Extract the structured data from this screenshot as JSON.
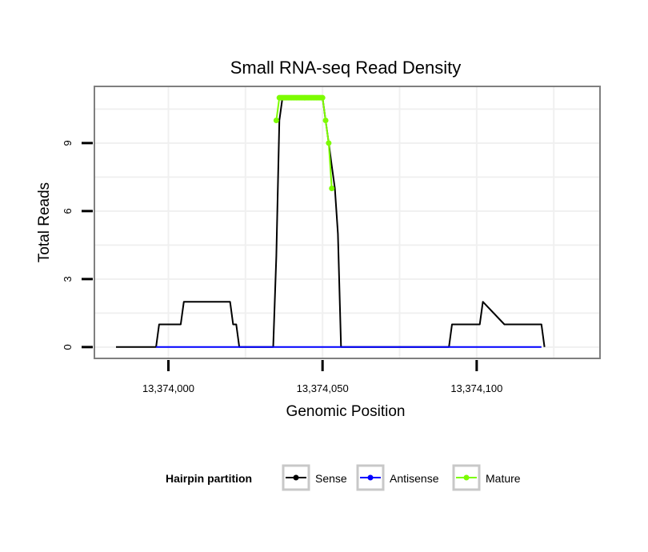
{
  "chart_data": {
    "type": "line",
    "title": "Small RNA-seq Read Density",
    "xlabel": "Genomic Position",
    "ylabel": "Total Reads",
    "xlim": [
      13373976,
      13374140
    ],
    "ylim": [
      -0.5,
      11.5
    ],
    "x_ticks": [
      13374000,
      13374050,
      13374100
    ],
    "x_tick_labels": [
      "13,374,000",
      "13,374,050",
      "13,374,100"
    ],
    "y_ticks": [
      0,
      3,
      6,
      9
    ],
    "y_tick_labels": [
      "0",
      "3",
      "6",
      "9"
    ],
    "grid": true,
    "legend": {
      "title": "Hairpin partition",
      "position": "bottom",
      "entries": [
        "Sense",
        "Antisense",
        "Mature"
      ]
    },
    "series": [
      {
        "name": "Sense",
        "color": "#000000",
        "markers": false,
        "x": [
          13373983,
          13373996,
          13373997,
          13374004,
          13374005,
          13374020,
          13374021,
          13374022,
          13374023,
          13374024,
          13374034,
          13374035,
          13374036,
          13374037,
          13374038,
          13374043,
          13374044,
          13374050,
          13374051,
          13374052,
          13374053,
          13374054,
          13374055,
          13374056,
          13374057,
          13374058,
          13374091,
          13374092,
          13374101,
          13374102,
          13374109,
          13374110,
          13374121,
          13374122
        ],
        "values": [
          0,
          0,
          1,
          1,
          2,
          2,
          1,
          1,
          0,
          0,
          0,
          4,
          10,
          11,
          11,
          11,
          11,
          11,
          10,
          9,
          8,
          7,
          5,
          0,
          0,
          0,
          0,
          1,
          1,
          2,
          1,
          1,
          1,
          0
        ]
      },
      {
        "name": "Antisense",
        "color": "#0000ff",
        "markers": false,
        "x": [
          13373996,
          13374121
        ],
        "values": [
          0,
          0
        ]
      },
      {
        "name": "Mature",
        "color": "#7cfc00",
        "markers": true,
        "x": [
          13374035,
          13374036,
          13374036.5,
          13374037,
          13374037.5,
          13374038,
          13374038.5,
          13374039,
          13374039.5,
          13374040,
          13374040.5,
          13374041,
          13374041.5,
          13374042,
          13374042.5,
          13374043,
          13374043.5,
          13374044,
          13374044.5,
          13374045,
          13374045.5,
          13374046,
          13374046.5,
          13374047,
          13374047.5,
          13374048,
          13374048.5,
          13374049,
          13374049.5,
          13374050,
          13374051,
          13374052,
          13374053
        ],
        "values": [
          10,
          11,
          11,
          11,
          11,
          11,
          11,
          11,
          11,
          11,
          11,
          11,
          11,
          11,
          11,
          11,
          11,
          11,
          11,
          11,
          11,
          11,
          11,
          11,
          11,
          11,
          11,
          11,
          11,
          11,
          10,
          9,
          7
        ]
      }
    ]
  }
}
